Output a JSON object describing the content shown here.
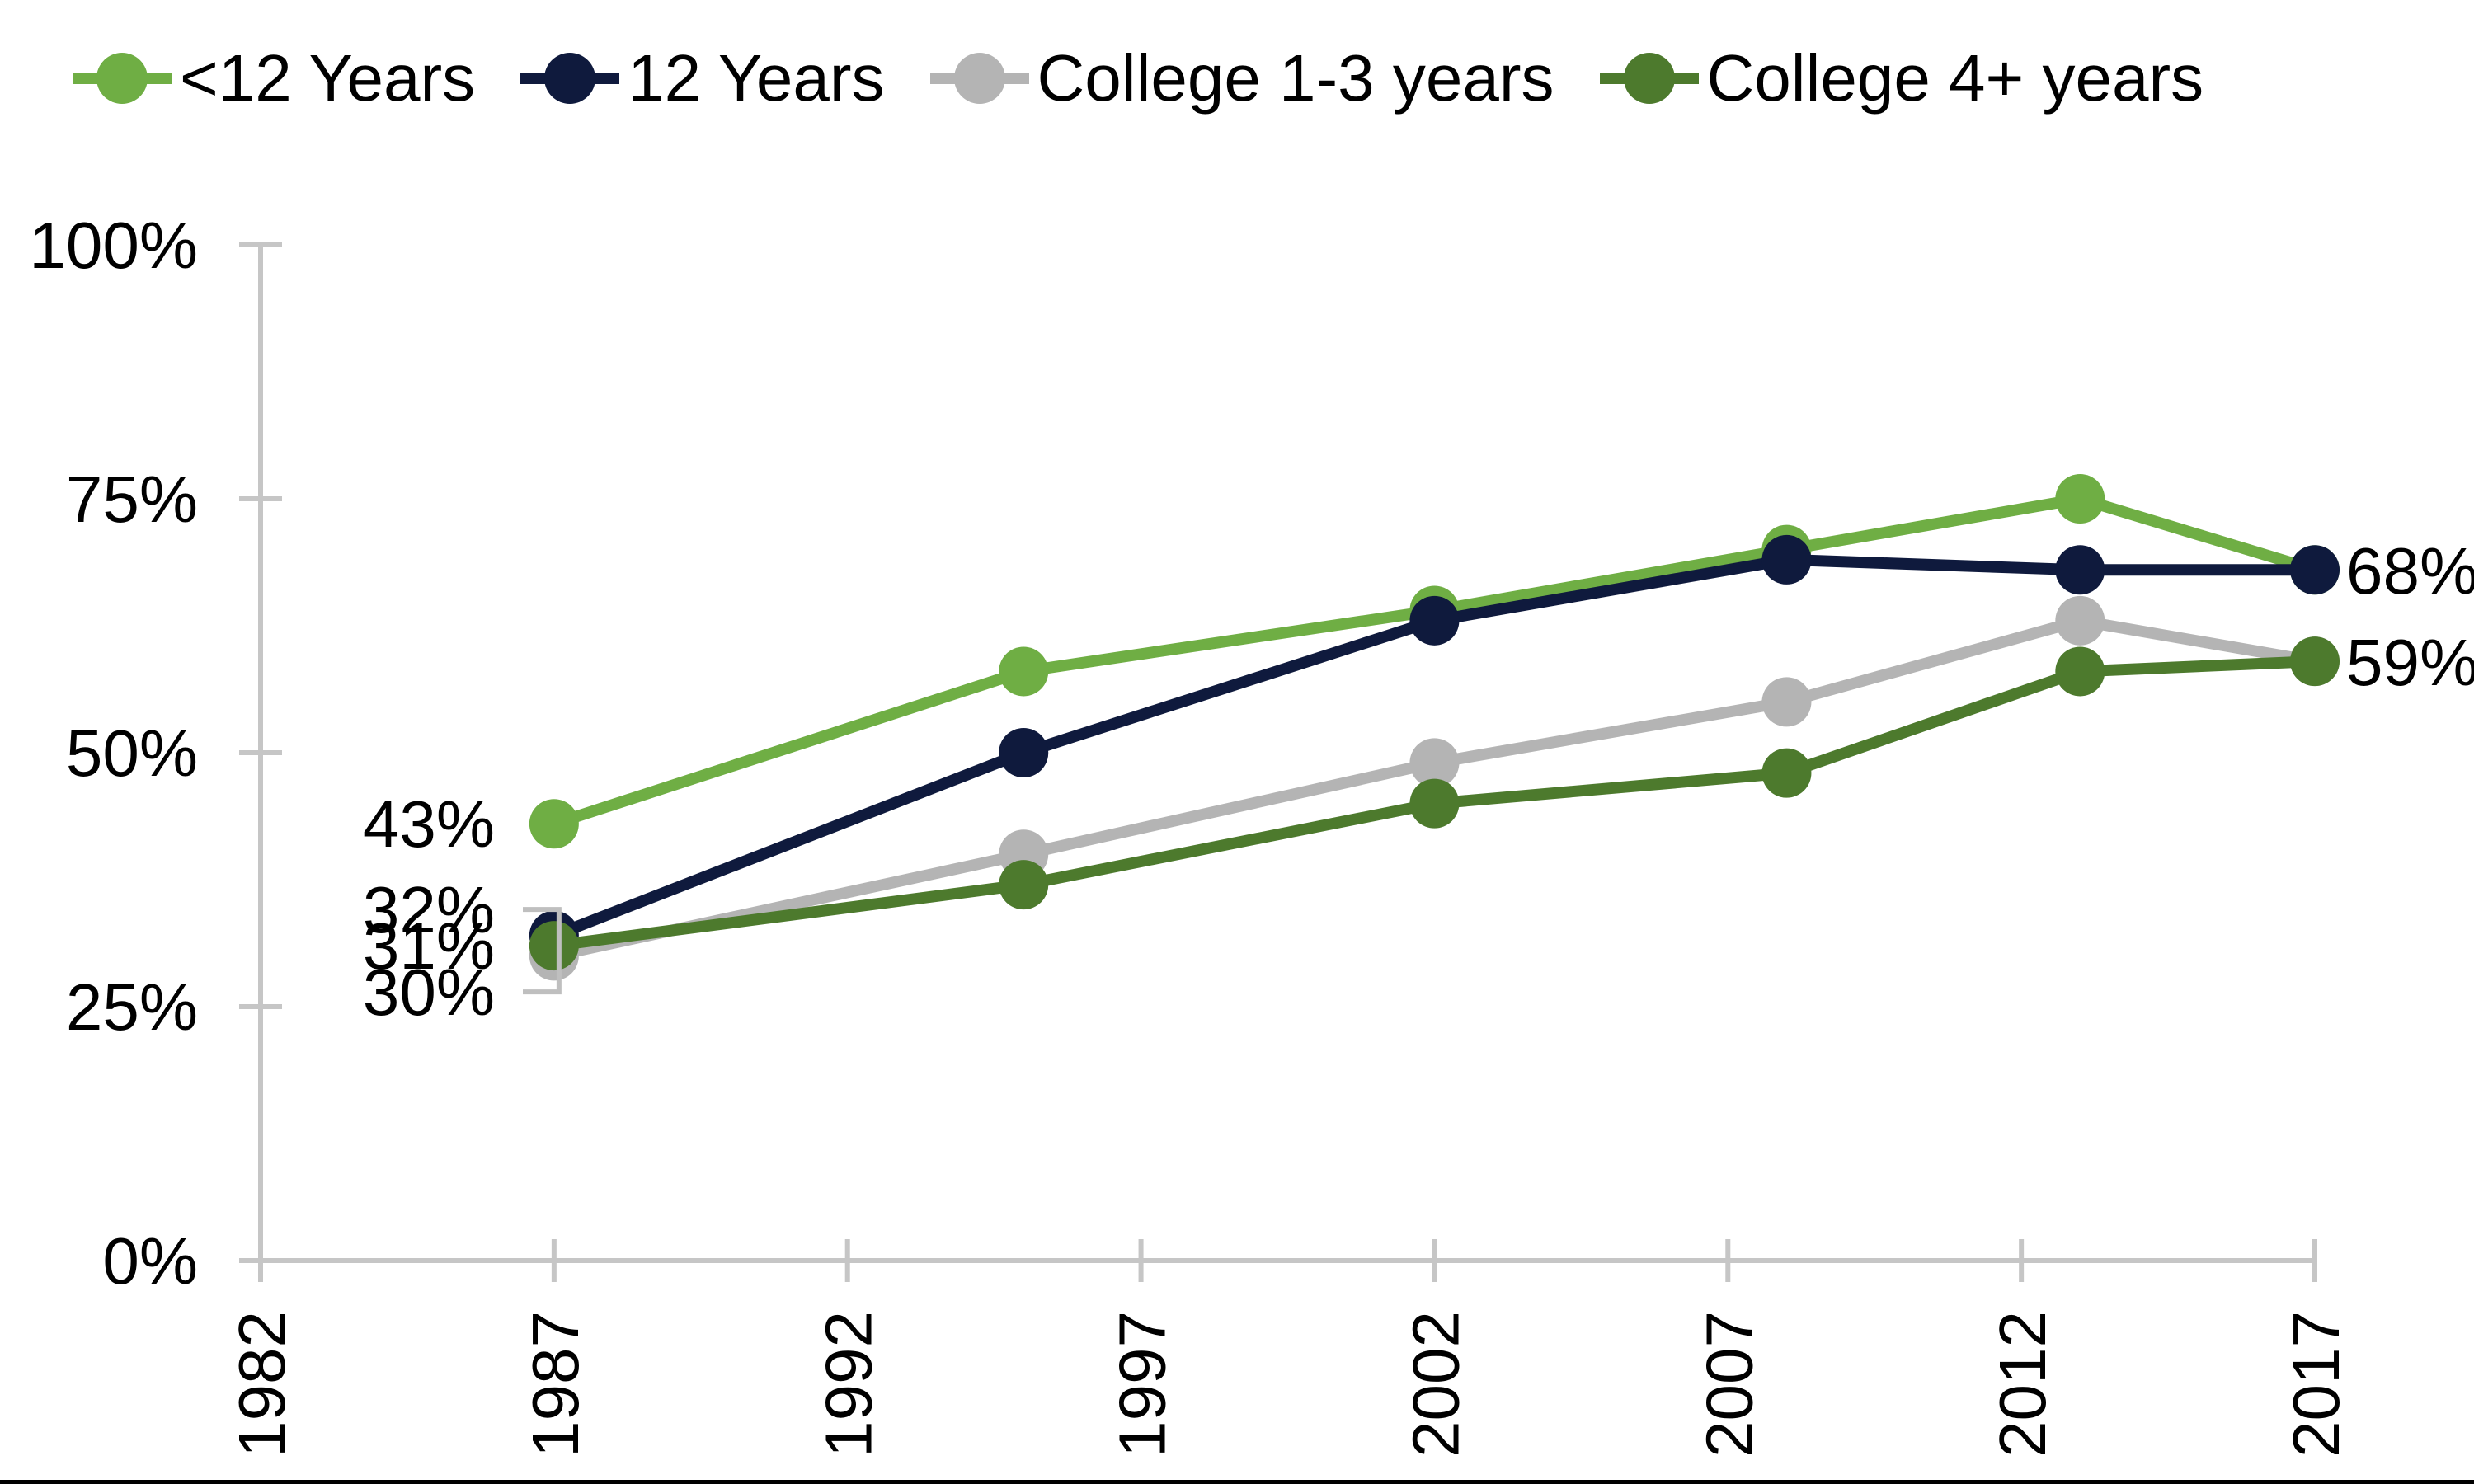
{
  "chart_data": {
    "type": "line",
    "title": "",
    "xlabel": "",
    "ylabel": "",
    "x": [
      1987,
      1995,
      2002,
      2008,
      2013,
      2017
    ],
    "series": [
      {
        "name": "<12 Years",
        "color": "#6FAE44",
        "values": [
          43,
          58,
          64,
          70,
          75,
          68
        ]
      },
      {
        "name": "12 Years",
        "color": "#0F1A3D",
        "values": [
          32,
          50,
          63,
          69,
          68,
          68
        ]
      },
      {
        "name": "College 1-3 years",
        "color": "#B4B4B4",
        "values": [
          30,
          40,
          49,
          55,
          63,
          59
        ]
      },
      {
        "name": "College 4+ years",
        "color": "#4D7A2D",
        "values": [
          31,
          37,
          45,
          48,
          58,
          59
        ]
      }
    ],
    "x_tick_labels": [
      "1982",
      "1987",
      "1992",
      "1997",
      "2002",
      "2007",
      "2012",
      "2017"
    ],
    "x_tick_values": [
      1982,
      1987,
      1992,
      1997,
      2002,
      2007,
      2012,
      2017
    ],
    "y_tick_labels": [
      "0%",
      "25%",
      "50%",
      "75%",
      "100%"
    ],
    "y_tick_values": [
      0,
      25,
      50,
      75,
      100
    ],
    "xlim": [
      1982,
      2017
    ],
    "ylim": [
      0,
      100
    ],
    "grid": false,
    "legend_position": "top",
    "point_labels": {
      "left": [
        {
          "text": "43%"
        },
        {
          "text": "32%"
        },
        {
          "text": "31%"
        },
        {
          "text": "30%"
        }
      ],
      "right": [
        {
          "text": "68%"
        },
        {
          "text": "59%"
        }
      ]
    },
    "axis_color": "#C6C6C6",
    "text_color": "#000000"
  }
}
